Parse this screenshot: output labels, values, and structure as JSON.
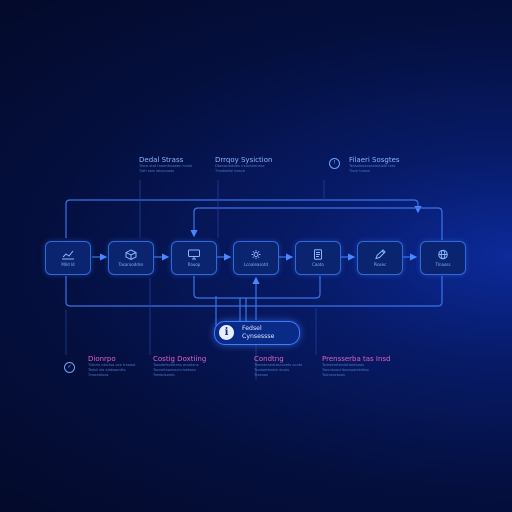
{
  "colors": {
    "accent": "#3d7bff",
    "node_border": "#2f6ad8",
    "text": "#8bb6ff",
    "pink": "#e060c8"
  },
  "annotations_top": [
    {
      "title": "Dedal Strass",
      "lines": [
        "Tisce stot tnoentssseen hnsts",
        "Tidh ssts lahocoods"
      ]
    },
    {
      "title": "Drrqoy Sysiction",
      "lines": [
        "Dtaeoxlaitdes rrsiorteenese",
        "Thedseiiol bosce"
      ]
    },
    {
      "title": "Filaeri Sosgtes",
      "lines": [
        "Tsitsaleoacsaeosslobl tsto",
        "Tisce hooss"
      ]
    }
  ],
  "annotations_bottom": [
    {
      "title": "Dionrpo",
      "style": "pink",
      "lines": [
        "Tiderla otsctsa oce trsoost",
        "Tedsli sts elatsoontts",
        "Tnocedloos"
      ]
    },
    {
      "title": "Costig Doxtiing",
      "style": "pink",
      "lines": [
        "Taosdefsotatnss ocsotsns",
        "Tsoneltssotssrrcrlsetsoo",
        "Tredsdsoreo"
      ]
    },
    {
      "title": "Condtng",
      "style": "pink",
      "lines": [
        "Tieeaecseotascsoets ocote",
        "Tsodoettsstot dcoss",
        "Tcseoos"
      ]
    },
    {
      "title": "Prensserba tas Insd",
      "style": "pink",
      "lines": [
        "Tsdrderotstslortaetsoos",
        "Toscnesacrlbsnsootstsltoo",
        "Toicsescsoos"
      ]
    }
  ],
  "nodes": [
    {
      "label": "Mlld ld",
      "icon": "chart-icon"
    },
    {
      "label": "Tasarooddsn",
      "icon": "cube-icon"
    },
    {
      "label": "Rauop",
      "icon": "monitor-icon"
    },
    {
      "label": "Lcoaleasotd",
      "icon": "gear-icon"
    },
    {
      "label": "Caoto",
      "icon": "document-icon"
    },
    {
      "label": "Piosec",
      "icon": "pen-icon"
    },
    {
      "label": "Tlnaoss",
      "icon": "globe-icon"
    }
  ],
  "callout": {
    "line1": "Fedsel",
    "line2": "Cynsessse"
  }
}
